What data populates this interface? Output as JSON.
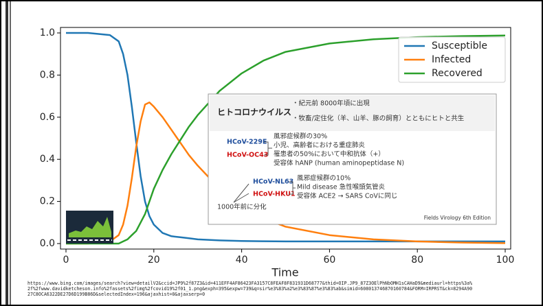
{
  "chart_data": {
    "type": "line",
    "xlabel": "Time",
    "x": [
      0,
      5,
      10,
      12,
      13,
      14,
      15,
      16,
      17,
      18,
      19,
      20,
      22,
      24,
      26,
      28,
      30,
      35,
      40,
      45,
      50,
      60,
      70,
      80,
      90,
      100
    ],
    "series": [
      {
        "name": "Susceptible",
        "color": "#1f77b4",
        "values": [
          1,
          1,
          0.99,
          0.96,
          0.9,
          0.8,
          0.65,
          0.48,
          0.32,
          0.2,
          0.13,
          0.09,
          0.05,
          0.035,
          0.03,
          0.025,
          0.02,
          0.015,
          0.012,
          0.011,
          0.01,
          0.01,
          0.01,
          0.01,
          0.01,
          0.01
        ]
      },
      {
        "name": "Infected",
        "color": "#ff7f0e",
        "values": [
          0,
          0,
          0.01,
          0.04,
          0.09,
          0.18,
          0.31,
          0.46,
          0.58,
          0.66,
          0.67,
          0.65,
          0.6,
          0.54,
          0.48,
          0.42,
          0.37,
          0.26,
          0.18,
          0.12,
          0.08,
          0.04,
          0.02,
          0.01,
          0.005,
          0.002
        ]
      },
      {
        "name": "Recovered",
        "color": "#2ca02c",
        "values": [
          0,
          0,
          0,
          0,
          0.01,
          0.02,
          0.04,
          0.06,
          0.1,
          0.14,
          0.2,
          0.26,
          0.35,
          0.425,
          0.49,
          0.555,
          0.61,
          0.725,
          0.808,
          0.869,
          0.91,
          0.95,
          0.97,
          0.98,
          0.985,
          0.988
        ]
      }
    ],
    "xlim": [
      0,
      100
    ],
    "ylim": [
      0,
      1
    ],
    "xticks": [
      0,
      20,
      40,
      60,
      80,
      100
    ],
    "yticks": [
      {
        "value": 0,
        "label": "0.0"
      },
      0.2,
      0.4,
      0.6,
      0.8,
      {
        "value": 1,
        "label": "1.0"
      }
    ],
    "legend": "upper right"
  },
  "inset_slide": {
    "title": "ヒトコロナウイルス",
    "bullets": [
      "・紀元前 8000年頃に出現",
      "・牧畜/定住化（羊、山羊、豚の飼育）とともにヒトと共生"
    ],
    "group1": {
      "names": [
        "HCoV-229E",
        "HCoV-OC43"
      ],
      "notes": [
        "風邪症候群の30%",
        "小児、高齢者における重症肺炎",
        "罹患者の50%において中和抗体（+）",
        "受容体 hANP (human aminopeptidase N)"
      ]
    },
    "group2": {
      "names": [
        "HCoV-NL63",
        "HCoV-HKU1"
      ],
      "notes": [
        "風邪症候群の10%",
        "Mild disease 急性喉頭気管炎",
        "受容体 ACE2 → SARS CoVに同じ"
      ]
    },
    "divergence": "1000年前に分化",
    "source": "Fields Virology 6th Edition"
  },
  "url_lines": [
    "https://www.bing.com/images/search?view=detailV2&ccid=JP9%2f87Z3&id=411EFF4AF86423FA3157C8FEAF8F831931D68777&thid=OIP.JP9_87Z3OElPhNbOMH1sCAHaD9&mediaurl=https%3a%",
    "2f%2fwww.davidketcheson.info%2fassets%2fimg%2fcovid19%2f01_1.png&exph=395&expw=739&q=sir%e3%83%a2%e3%83%87%e3%83%ab&simid=608013746870160784&FORM=IRPRST&ck=8294A90",
    "27C8OCA6322DE27D6D199B86D&selectedIndex=196&ajaxhist=0&ajaxserp=0"
  ]
}
